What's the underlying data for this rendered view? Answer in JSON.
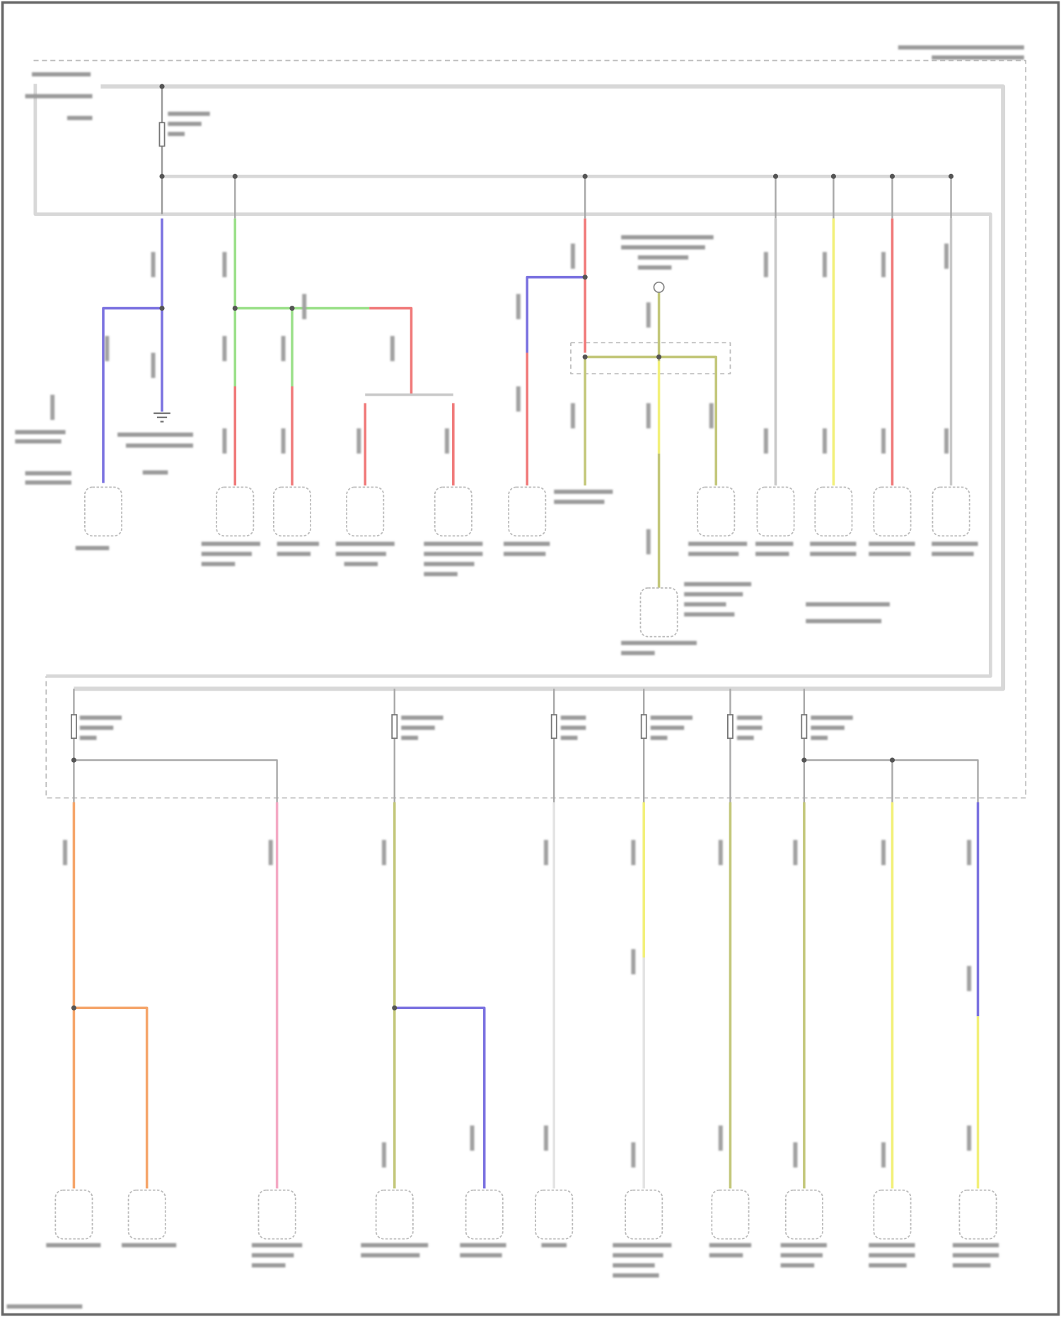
{
  "diagram": {
    "type": "wiring-schematic",
    "text_legible": false,
    "wire_colors": {
      "bus": "#d8d8d8",
      "frame": "#555555",
      "dashed_box": "#bdbdbd",
      "violet": "#7b72e0",
      "green": "#9be08a",
      "red": "#f07a7a",
      "olive": "#c3c77a",
      "yellow": "#f2f07a",
      "gray": "#c8c8c8",
      "orange": "#f5a56a",
      "pink": "#f4a9c4",
      "white": "#e4e4e4"
    },
    "upper_section": {
      "component_count": 12,
      "wire_colors": [
        "violet",
        "green",
        "green",
        "red",
        "red",
        "red",
        "olive",
        "yellow",
        "olive",
        "gray",
        "yellow",
        "red",
        "gray"
      ]
    },
    "lower_section": {
      "fuse_count": 6,
      "component_count": 11,
      "wire_colors": [
        "orange",
        "orange",
        "pink",
        "olive",
        "violet",
        "white",
        "yellow",
        "olive",
        "olive",
        "yellow",
        "violet"
      ]
    }
  }
}
